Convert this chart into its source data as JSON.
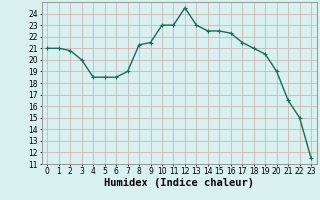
{
  "x": [
    0,
    1,
    2,
    3,
    4,
    5,
    6,
    7,
    8,
    9,
    10,
    11,
    12,
    13,
    14,
    15,
    16,
    17,
    18,
    19,
    20,
    21,
    22,
    23
  ],
  "y": [
    21,
    21,
    20.8,
    20,
    18.5,
    18.5,
    18.5,
    19,
    21.3,
    21.5,
    23,
    23,
    24.5,
    23,
    22.5,
    22.5,
    22.3,
    21.5,
    21,
    20.5,
    19,
    16.5,
    15,
    11.5
  ],
  "line_color": "#1a6b5a",
  "marker": "+",
  "marker_size": 3,
  "bg_color": "#d8f0ee",
  "grid_major_color": "#c8b8b8",
  "grid_minor_color": "#d8c8c8",
  "xlabel": "Humidex (Indice chaleur)",
  "ylim": [
    11,
    25
  ],
  "xlim": [
    -0.5,
    23.5
  ],
  "yticks": [
    11,
    12,
    13,
    14,
    15,
    16,
    17,
    18,
    19,
    20,
    21,
    22,
    23,
    24
  ],
  "xticks": [
    0,
    1,
    2,
    3,
    4,
    5,
    6,
    7,
    8,
    9,
    10,
    11,
    12,
    13,
    14,
    15,
    16,
    17,
    18,
    19,
    20,
    21,
    22,
    23
  ],
  "tick_fontsize": 5.5,
  "xlabel_fontsize": 7.5,
  "line_width": 1.0
}
